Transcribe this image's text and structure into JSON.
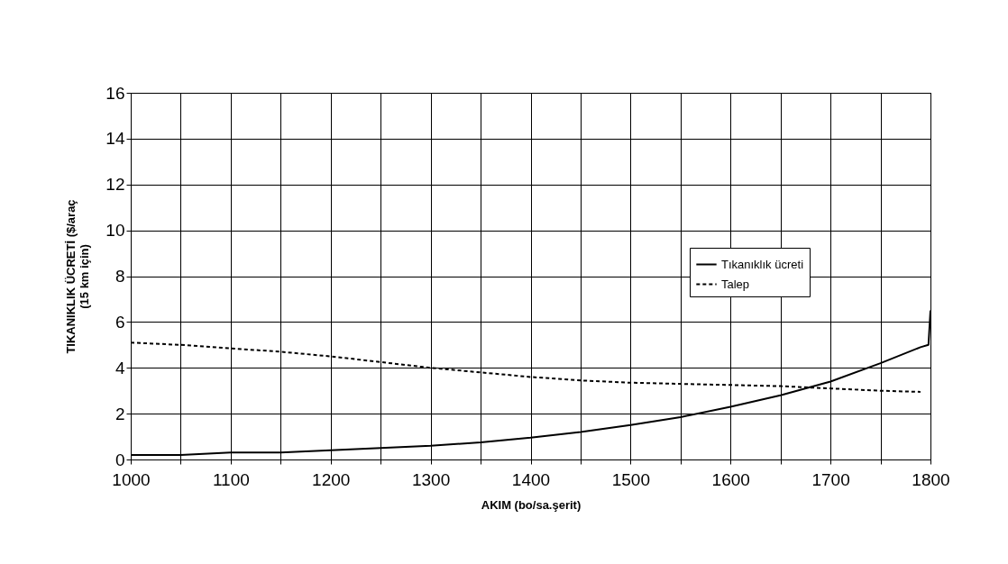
{
  "chart_data": {
    "type": "line",
    "xlabel": "AKIM (bo/sa.şerit)",
    "ylabel": "TIKANIKLIK ÜCRETİ ($/araç\n(15 km için)",
    "xlim": [
      1000,
      1800
    ],
    "ylim": [
      0,
      16
    ],
    "xticks": [
      1000,
      {
        "value": 1050,
        "label": null
      },
      1100,
      {
        "value": 1150,
        "label": null
      },
      1200,
      {
        "value": 1250,
        "label": null
      },
      1300,
      {
        "value": 1350,
        "label": null
      },
      1400,
      {
        "value": 1450,
        "label": null
      },
      1500,
      {
        "value": 1550,
        "label": null
      },
      1600,
      {
        "value": 1650,
        "label": null
      },
      1700,
      {
        "value": 1750,
        "label": null
      },
      1800
    ],
    "yticks": [
      0,
      2,
      4,
      6,
      8,
      10,
      12,
      14,
      16
    ],
    "grid": true,
    "legend": "right",
    "marker": "none",
    "series": [
      {
        "name": "Tıkanıklık ücreti",
        "color": "#000000",
        "line_style": "solid",
        "x": [
          1000,
          1050,
          1100,
          1150,
          1200,
          1250,
          1300,
          1350,
          1400,
          1450,
          1500,
          1550,
          1600,
          1650,
          1700,
          1750,
          1790,
          1798,
          1800
        ],
        "values": [
          0.2,
          0.2,
          0.3,
          0.3,
          0.4,
          0.5,
          0.6,
          0.75,
          0.95,
          1.2,
          1.5,
          1.85,
          2.3,
          2.8,
          3.4,
          4.2,
          4.9,
          5.0,
          6.5
        ]
      },
      {
        "name": "Talep",
        "color": "#000000",
        "line_style": "dashed",
        "x": [
          1000,
          1050,
          1100,
          1150,
          1200,
          1250,
          1300,
          1350,
          1400,
          1450,
          1500,
          1550,
          1600,
          1650,
          1700,
          1750,
          1790
        ],
        "values": [
          5.1,
          5.0,
          4.85,
          4.7,
          4.5,
          4.25,
          4.0,
          3.8,
          3.6,
          3.45,
          3.35,
          3.3,
          3.25,
          3.2,
          3.1,
          3.0,
          2.95
        ]
      }
    ]
  }
}
